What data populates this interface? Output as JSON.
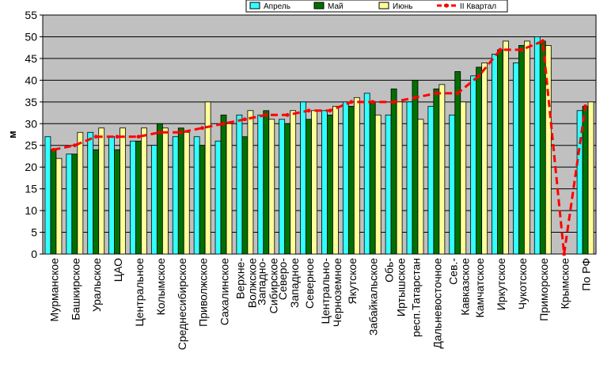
{
  "chart_data": {
    "type": "bar",
    "ylabel": "м",
    "ylim": [
      0,
      55
    ],
    "yticks": [
      0,
      5,
      10,
      15,
      20,
      25,
      30,
      35,
      40,
      45,
      50,
      55
    ],
    "grid": true,
    "legend_position": "top",
    "categories": [
      "Мурманское",
      "Башкирское",
      "Уральское",
      "ЦАО",
      "Центральное",
      "Колымское",
      "Среднесибирское",
      "Приволжское",
      "Сахалинское",
      "Верхне-Волжское",
      "Западно-Сибирское",
      "Северо-Западное",
      "Северное",
      "Центрально-Черноземное",
      "Якутское",
      "Забайкальское",
      "Обь-Иртышское",
      "респ.Татарстан",
      "Дальневосточное",
      "Сев.-Кавказское",
      "Камчатское",
      "Иркутское",
      "Чукотское",
      "Приморское",
      "Крымское",
      "По РФ"
    ],
    "series": [
      {
        "name": "Апрель",
        "kind": "bar",
        "color": "#33ffff",
        "values": [
          27,
          23,
          28,
          27,
          26,
          25,
          27,
          27,
          26,
          32,
          32,
          31,
          35,
          33,
          35,
          37,
          32,
          35,
          34,
          32,
          41,
          46,
          44,
          50,
          null,
          33
        ]
      },
      {
        "name": "Май",
        "kind": "bar",
        "color": "#007000",
        "values": [
          24,
          23,
          24,
          24,
          26,
          30,
          29,
          25,
          32,
          27,
          33,
          30,
          31,
          32,
          34,
          35,
          38,
          40,
          38,
          42,
          43,
          47,
          48,
          49,
          null,
          34
        ]
      },
      {
        "name": "Июнь",
        "kind": "bar",
        "color": "#ffff99",
        "values": [
          22,
          28,
          29,
          29,
          29,
          29,
          28,
          35,
          30,
          33,
          31,
          33,
          33,
          34,
          36,
          32,
          35,
          31,
          39,
          35,
          44,
          49,
          49,
          48,
          null,
          35
        ]
      },
      {
        "name": "II Квартал",
        "kind": "line",
        "color": "#ff0000",
        "values": [
          24,
          25,
          27,
          27,
          27,
          28,
          28,
          29,
          30,
          31,
          32,
          32,
          33,
          33,
          35,
          35,
          35,
          36,
          37,
          37,
          41,
          47,
          47,
          49,
          0,
          34
        ]
      }
    ]
  }
}
